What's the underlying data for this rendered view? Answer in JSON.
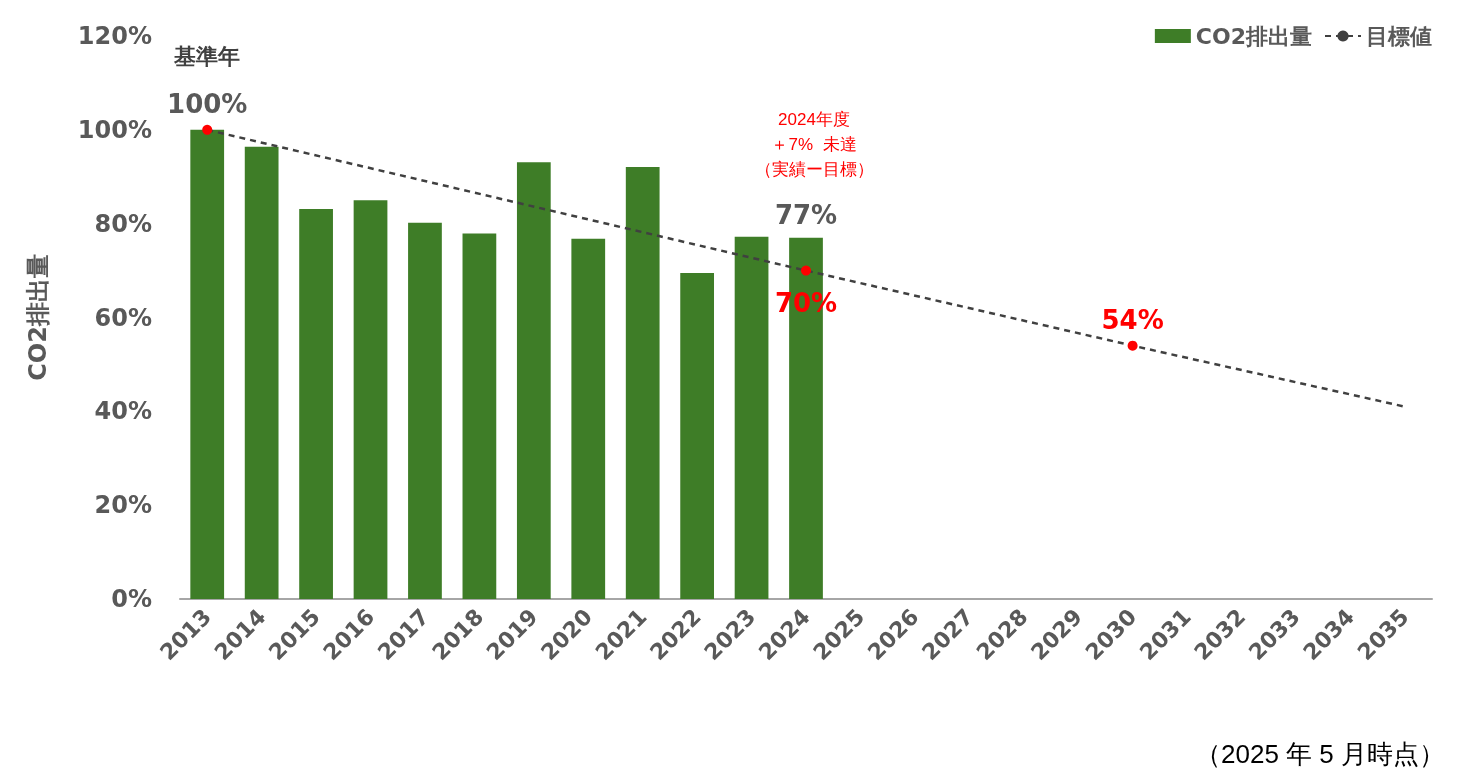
{
  "chart_data": {
    "type": "bar",
    "categories": [
      "2013",
      "2014",
      "2015",
      "2016",
      "2017",
      "2018",
      "2019",
      "2020",
      "2021",
      "2022",
      "2023",
      "2024",
      "2025",
      "2026",
      "2027",
      "2028",
      "2029",
      "2030",
      "2031",
      "2032",
      "2033",
      "2034",
      "2035"
    ],
    "series": [
      {
        "name": "CO2排出量",
        "color": "#3e7d27",
        "values": [
          100,
          96.4,
          83.1,
          85,
          80.2,
          77.9,
          93.1,
          76.8,
          92.1,
          69.5,
          77.2,
          77,
          null,
          null,
          null,
          null,
          null,
          null,
          null,
          null,
          null,
          null,
          null
        ],
        "value_labels": [
          null,
          null,
          null,
          null,
          null,
          null,
          null,
          null,
          null,
          null,
          null,
          "77%",
          null,
          null,
          null,
          null,
          null,
          null,
          null,
          null,
          null,
          null,
          null
        ]
      },
      {
        "name": "目標値",
        "type": "line",
        "line_style": "dashed",
        "color": "#404040",
        "values": [
          100,
          null,
          null,
          null,
          null,
          null,
          null,
          null,
          null,
          null,
          null,
          70,
          null,
          null,
          null,
          null,
          null,
          54,
          null,
          null,
          null,
          null,
          41
        ],
        "value_labels": [
          "100%",
          null,
          null,
          null,
          null,
          null,
          null,
          null,
          null,
          null,
          null,
          "70%",
          null,
          null,
          null,
          null,
          null,
          "54%",
          null,
          null,
          null,
          null,
          null
        ]
      }
    ],
    "ylabel": "CO2排出量",
    "ylim": [
      0,
      120
    ],
    "yticks": [
      {
        "value": 0,
        "label": "0%"
      },
      {
        "value": 20,
        "label": "20%"
      },
      {
        "value": 40,
        "label": "40%"
      },
      {
        "value": 60,
        "label": "60%"
      },
      {
        "value": 80,
        "label": "80%"
      },
      {
        "value": 100,
        "label": "100%"
      },
      {
        "value": 120,
        "label": "120%"
      }
    ],
    "grid": false,
    "legend": "top right",
    "annotations": [
      {
        "text": "基準年",
        "x": "2013",
        "y": 100
      },
      "2024年度",
      "＋7%  未達",
      "（実績ー目標）",
      "（2025 年 5 月時点）"
    ]
  }
}
